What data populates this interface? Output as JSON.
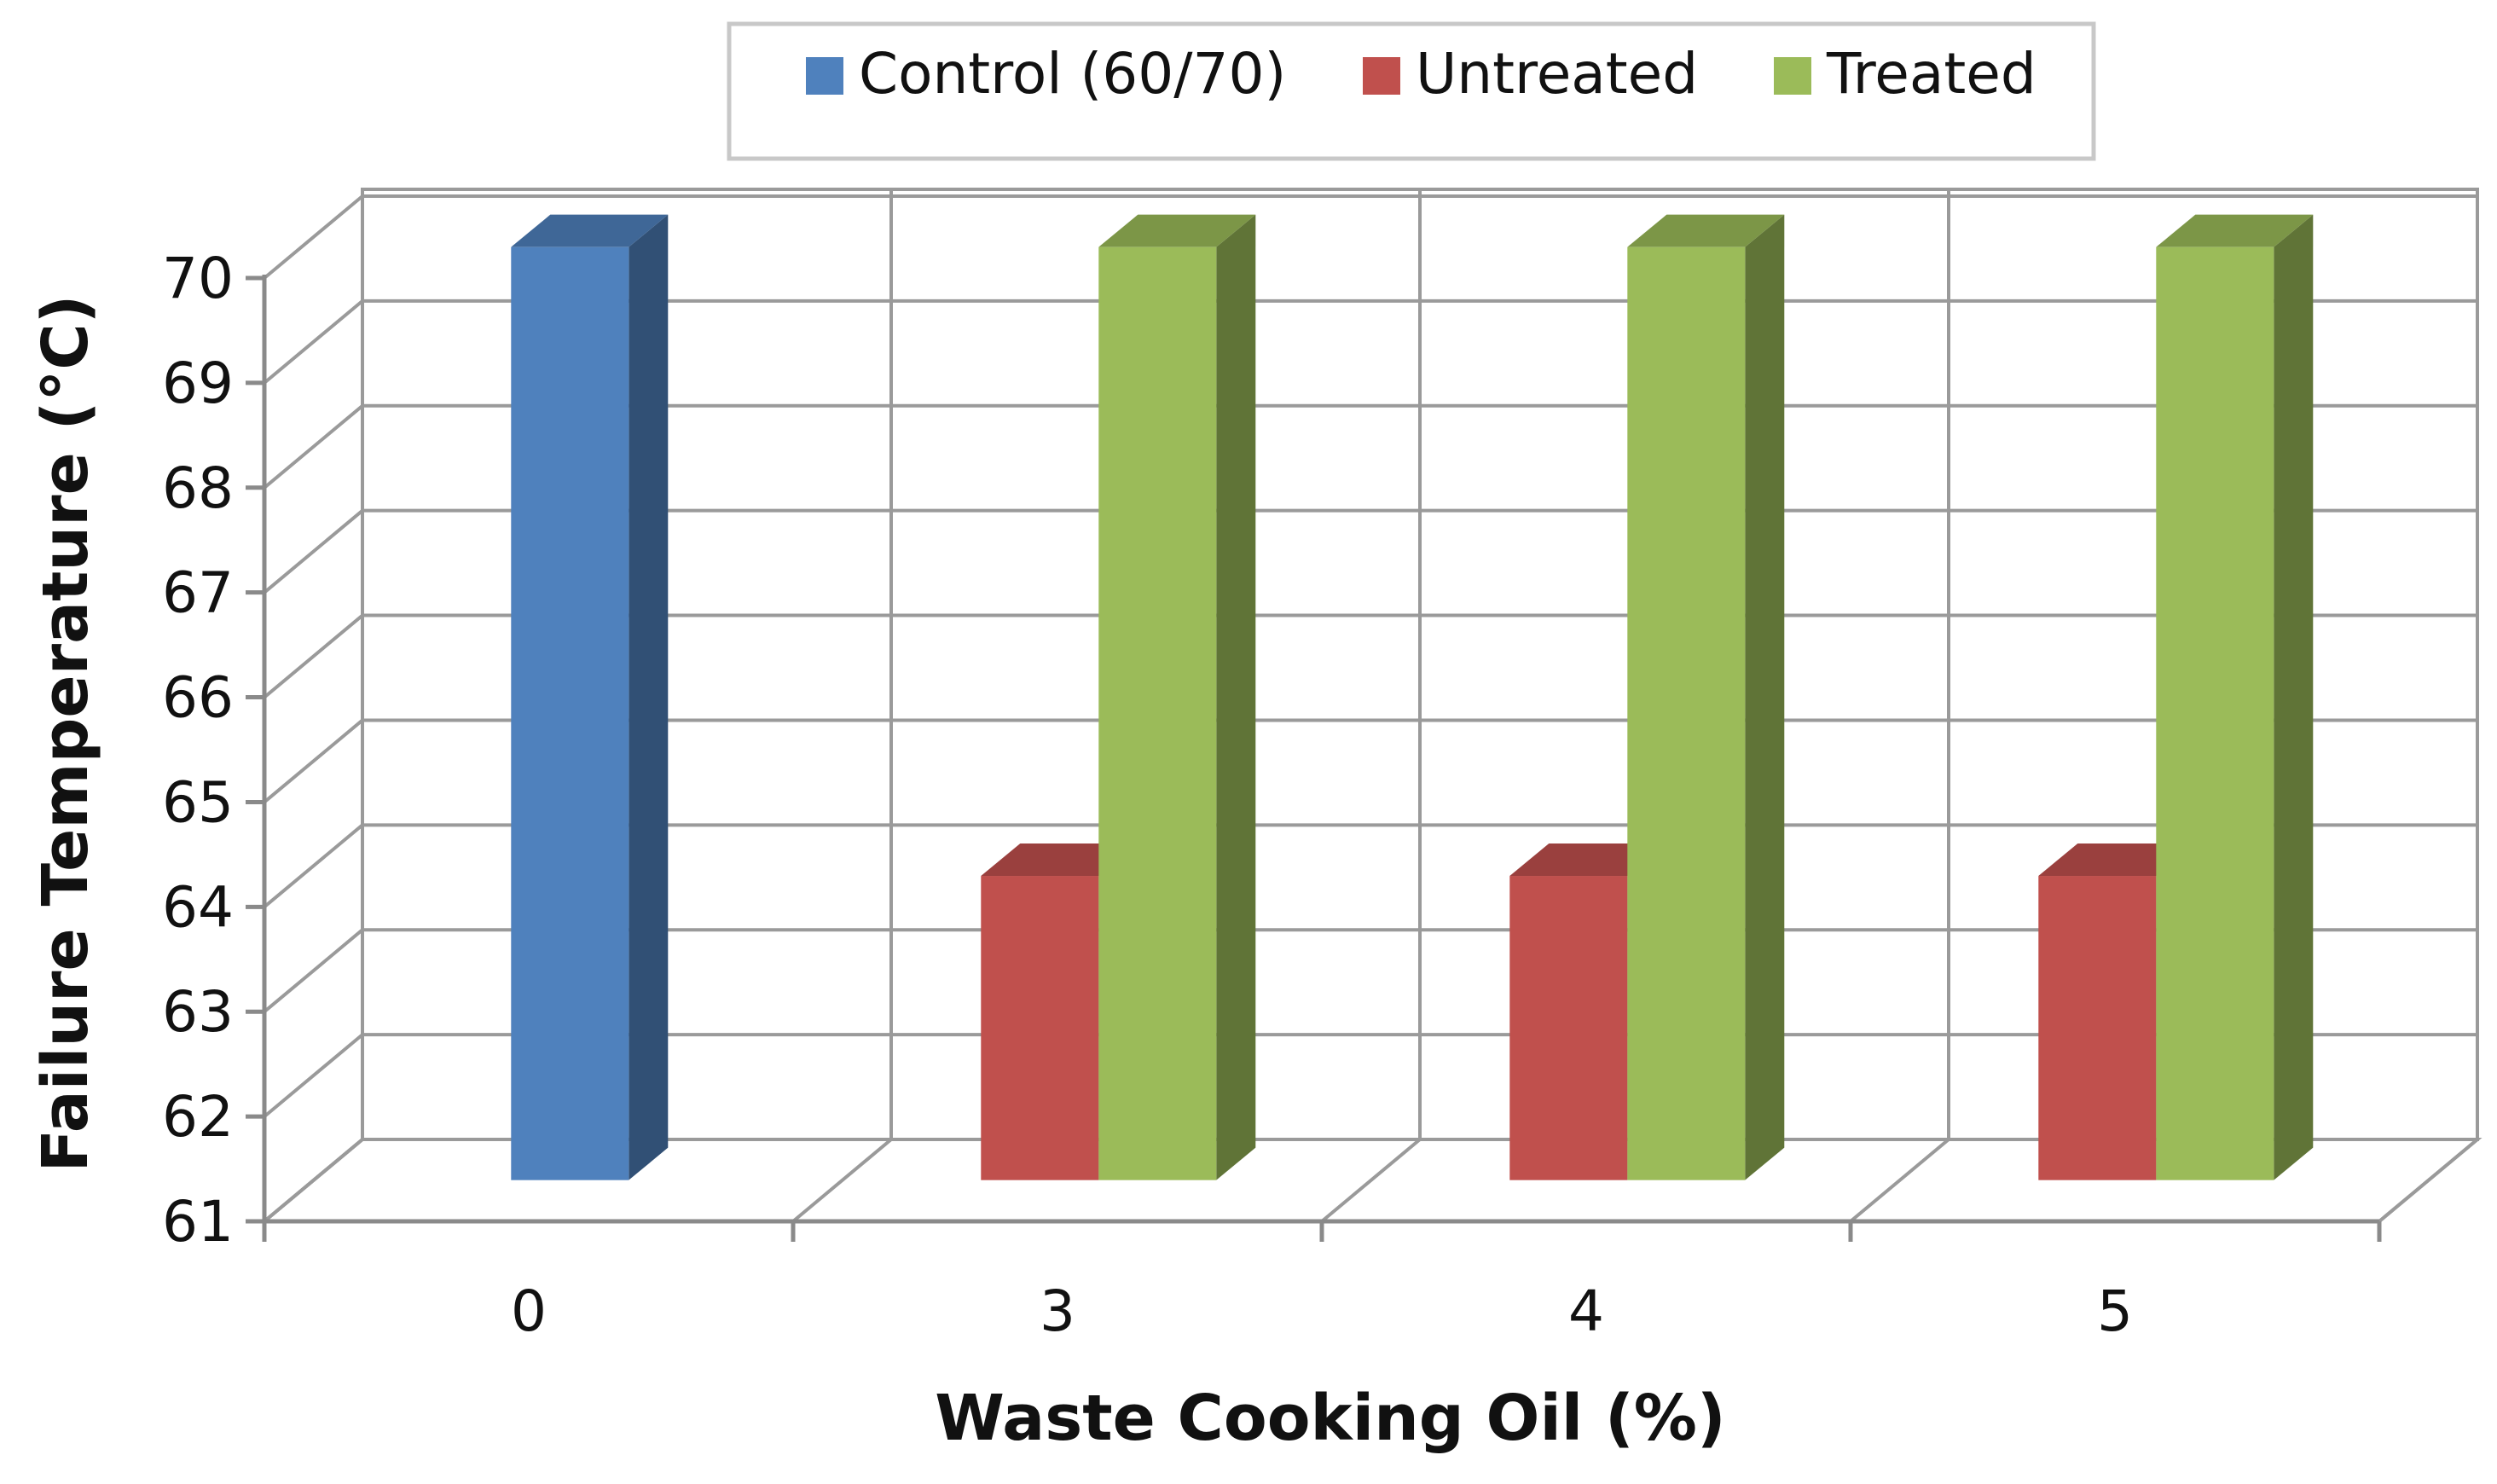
{
  "chart_data": {
    "type": "bar",
    "categories": [
      "0",
      "3",
      "4",
      "5"
    ],
    "series": [
      {
        "name": "Control (60/70)",
        "values": [
          70,
          null,
          null,
          null
        ],
        "color": "#4F81BD"
      },
      {
        "name": "Untreated",
        "values": [
          null,
          64,
          64,
          64
        ],
        "color": "#C0504D"
      },
      {
        "name": "Treated",
        "values": [
          null,
          70,
          70,
          70
        ],
        "color": "#9BBB59"
      }
    ],
    "xlabel": "Waste Cooking Oil (%)",
    "ylabel": "Failure Temperature (°C)",
    "ylim": [
      61,
      70
    ],
    "yticks": [
      "61",
      "62",
      "63",
      "64",
      "65",
      "66",
      "67",
      "68",
      "69",
      "70"
    ],
    "grid": true,
    "legend_position": "top-center",
    "style": "3d-clustered-column"
  }
}
